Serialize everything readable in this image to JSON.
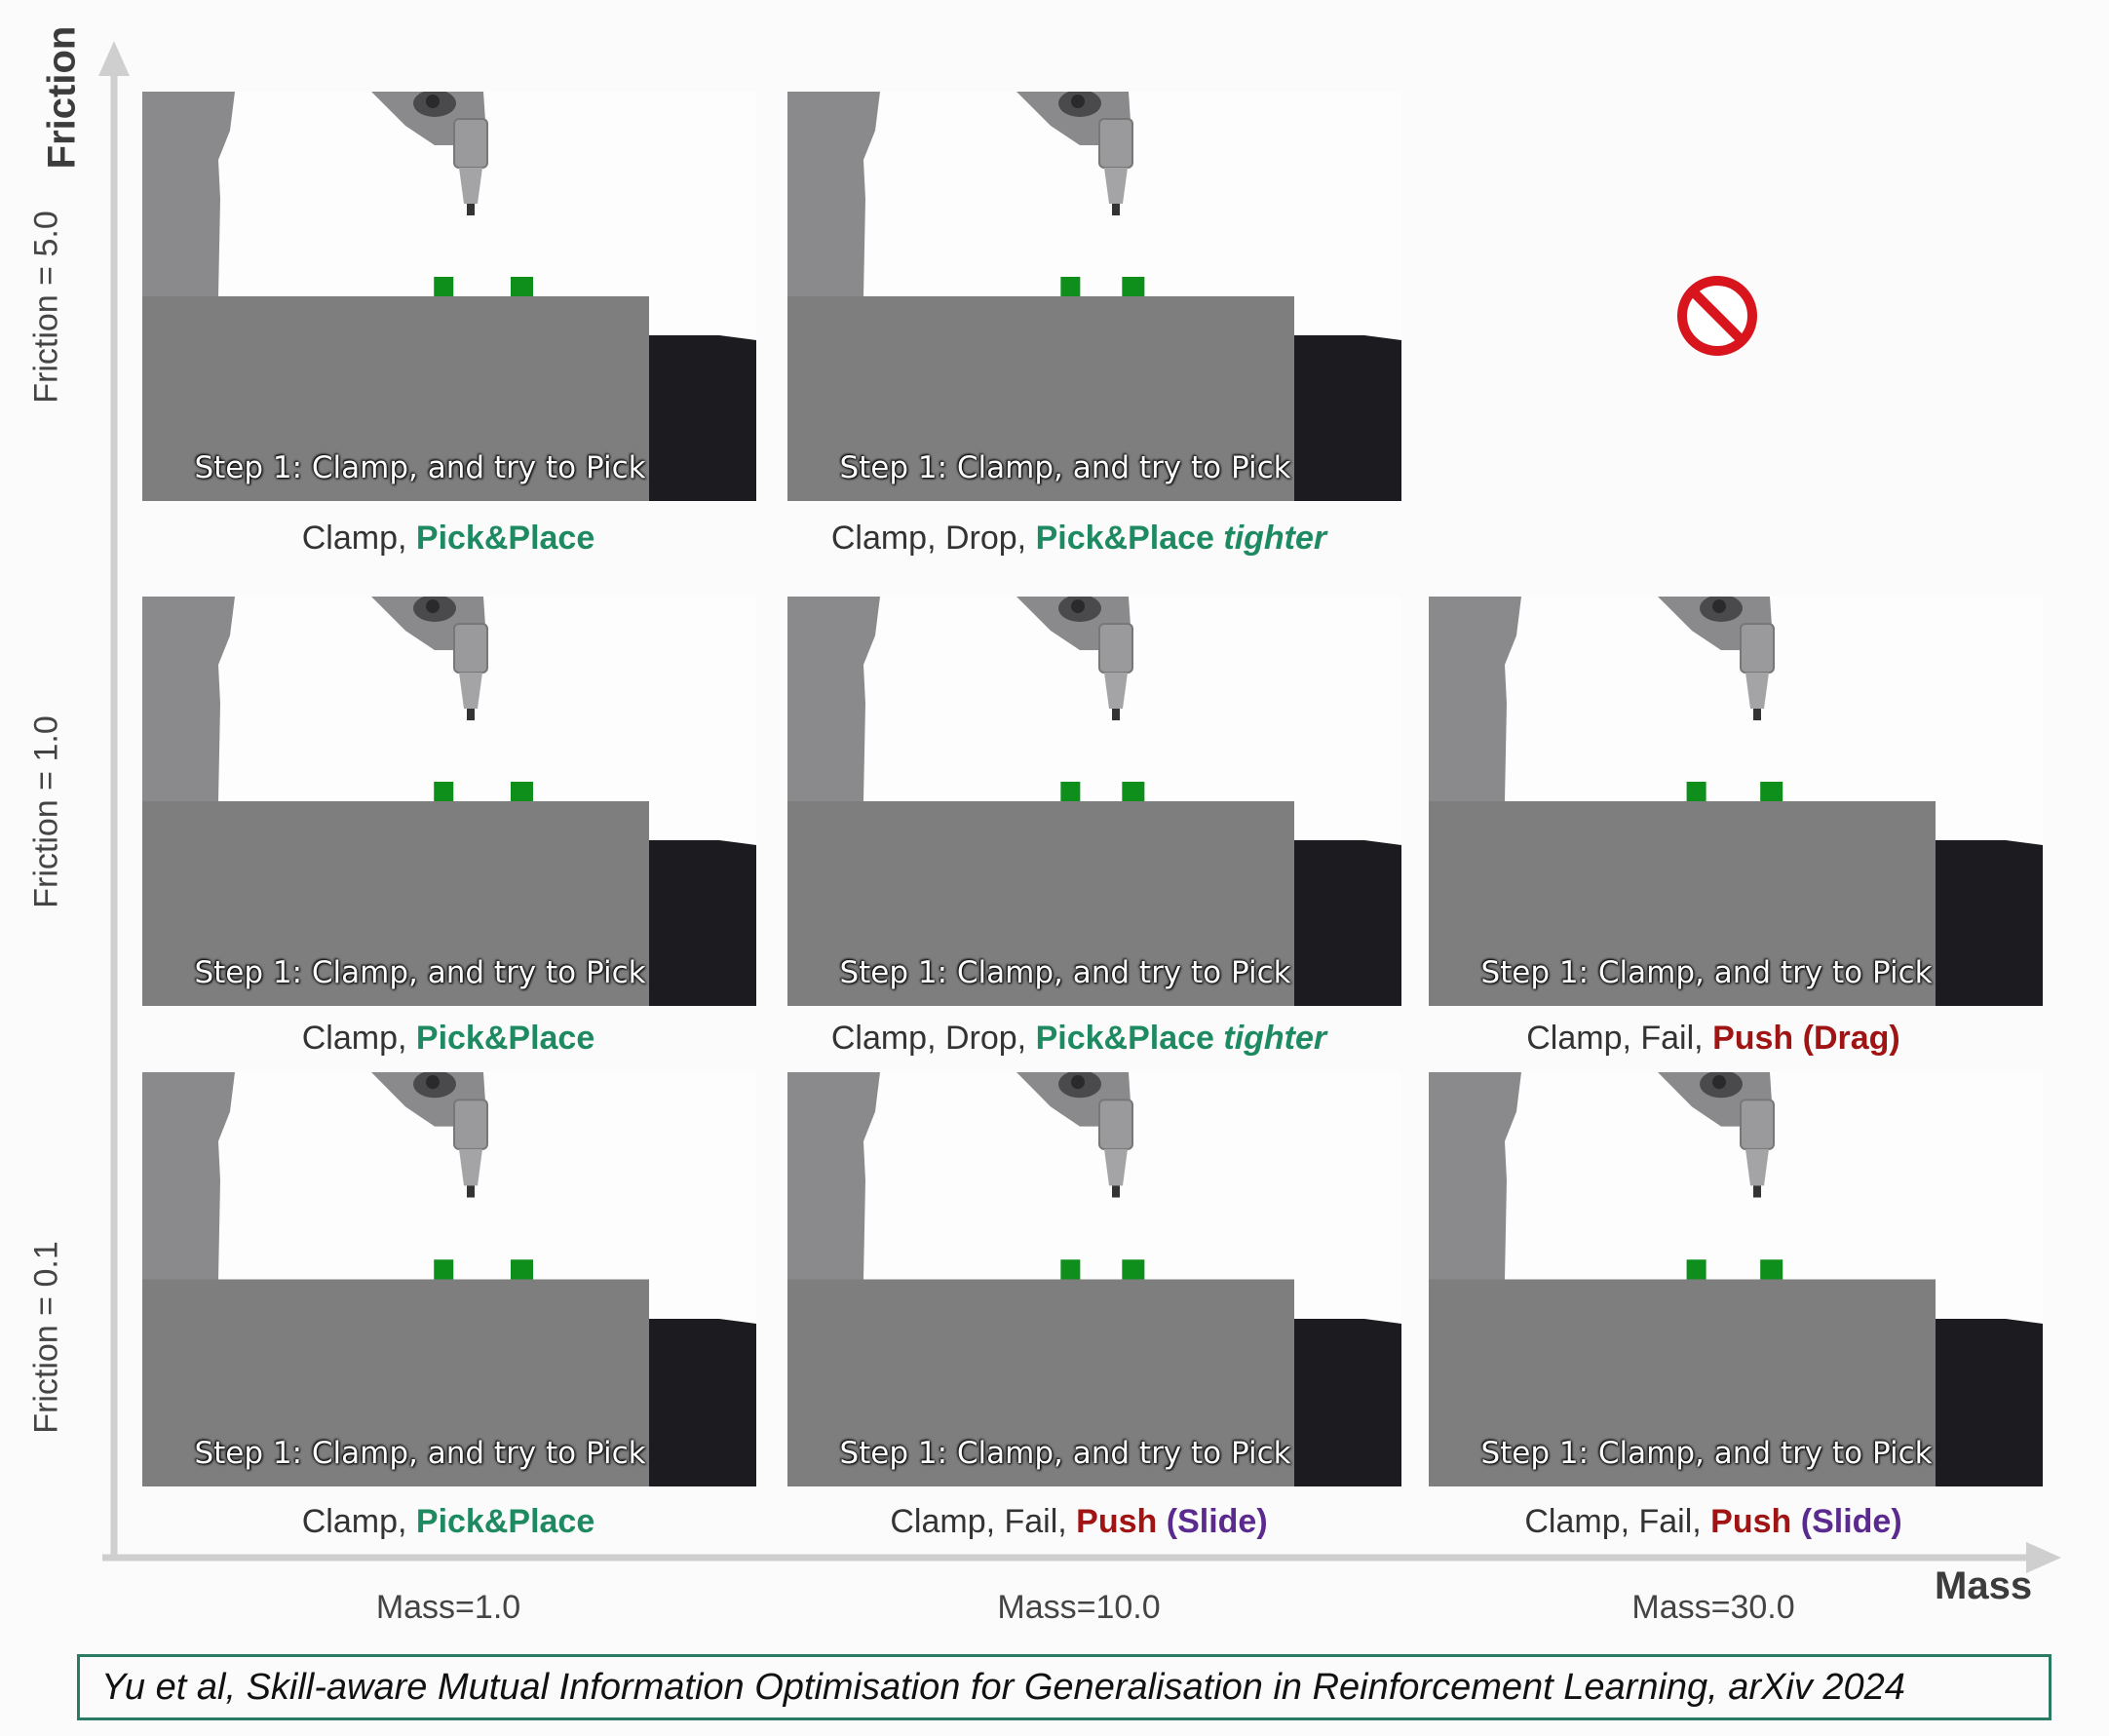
{
  "axes": {
    "y_title": "Friction",
    "x_title": "Mass",
    "rows": [
      {
        "label": "Friction = 5.0"
      },
      {
        "label": "Friction = 1.0"
      },
      {
        "label": "Friction = 0.1"
      }
    ],
    "columns": [
      {
        "label": "Mass=1.0"
      },
      {
        "label": "Mass=10.0"
      },
      {
        "label": "Mass=30.0"
      }
    ]
  },
  "panel_overlay_text": "Step 1: Clamp, and try to Pick",
  "unavailable_icon": "prohibited-icon",
  "grid": [
    [
      {
        "available": true,
        "parts": [
          {
            "t": "Clamp, ",
            "s": "plain"
          },
          {
            "t": "Pick&Place",
            "s": "pp"
          }
        ]
      },
      {
        "available": true,
        "parts": [
          {
            "t": "Clamp, Drop, ",
            "s": "plain"
          },
          {
            "t": "Pick&Place ",
            "s": "pp"
          },
          {
            "t": "tighter",
            "s": "pp-italic"
          }
        ]
      },
      {
        "available": false,
        "parts": []
      }
    ],
    [
      {
        "available": true,
        "parts": [
          {
            "t": "Clamp, ",
            "s": "plain"
          },
          {
            "t": "Pick&Place",
            "s": "pp"
          }
        ]
      },
      {
        "available": true,
        "parts": [
          {
            "t": "Clamp, Drop, ",
            "s": "plain"
          },
          {
            "t": "Pick&Place ",
            "s": "pp"
          },
          {
            "t": "tighter",
            "s": "pp-italic"
          }
        ]
      },
      {
        "available": true,
        "parts": [
          {
            "t": "Clamp, Fail, ",
            "s": "plain"
          },
          {
            "t": "Push",
            "s": "push"
          },
          {
            "t": " (Drag)",
            "s": "push"
          }
        ]
      }
    ],
    [
      {
        "available": true,
        "parts": [
          {
            "t": "Clamp, ",
            "s": "plain"
          },
          {
            "t": "Pick&Place",
            "s": "pp"
          }
        ]
      },
      {
        "available": true,
        "parts": [
          {
            "t": "Clamp, Fail, ",
            "s": "plain"
          },
          {
            "t": "Push",
            "s": "push"
          },
          {
            "t": " (Slide)",
            "s": "mod"
          }
        ]
      },
      {
        "available": true,
        "parts": [
          {
            "t": "Clamp, Fail, ",
            "s": "plain"
          },
          {
            "t": "Push",
            "s": "push"
          },
          {
            "t": " (Slide)",
            "s": "mod"
          }
        ]
      }
    ]
  ],
  "citation": "Yu et al, Skill-aware Mutual Information Optimisation for Generalisation in Reinforcement Learning, arXiv 2024",
  "colors": {
    "pick_place": "#1e8a62",
    "push": "#a11414",
    "slide_drag": "#5a2a8f",
    "table": "#7e7e7f",
    "robot": "#8a8a8c",
    "block": "#0e8f1c",
    "citation_border": "#2a7a64"
  }
}
